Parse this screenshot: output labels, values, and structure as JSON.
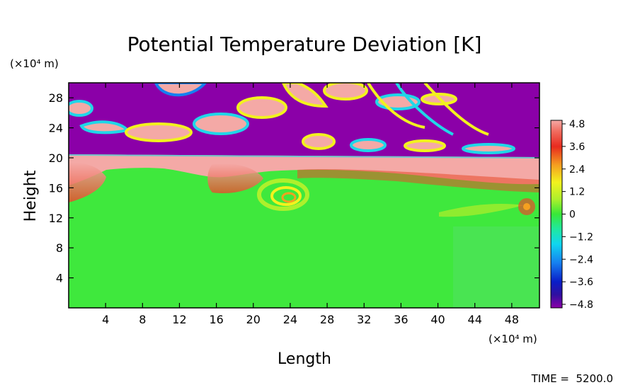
{
  "chart_data": {
    "type": "heatmap",
    "title": "Potential Temperature Deviation [K]",
    "xlabel": "Length",
    "ylabel": "Height",
    "x_unit": "(×10⁴ m)",
    "y_unit": "(×10⁴ m)",
    "xlim": [
      0,
      51
    ],
    "ylim": [
      0,
      30
    ],
    "x_ticks": [
      4,
      8,
      12,
      16,
      20,
      24,
      28,
      32,
      36,
      40,
      44,
      48
    ],
    "y_ticks": [
      4,
      8,
      12,
      16,
      20,
      24,
      28
    ],
    "colorbar": {
      "ticks": [
        "4.8",
        "3.6",
        "2.4",
        "1.2",
        "0",
        "−1.2",
        "−2.4",
        "−3.6",
        "−4.8"
      ],
      "min": -4.8,
      "max": 4.8
    },
    "regions": {
      "lower_layer_value": -0.2,
      "interface_layer_value": 4.8,
      "interface_height_left": 20.5,
      "interface_height_right": 19.8,
      "upper_layer_value": -4.8,
      "upper_anomaly_value": 4.8
    },
    "footer": "TIME =  5200.0"
  },
  "colors": {
    "purple": "#8b00a8",
    "pink": "#f4a9a6",
    "green": "#3fe83d",
    "red": "#e83a2a"
  }
}
